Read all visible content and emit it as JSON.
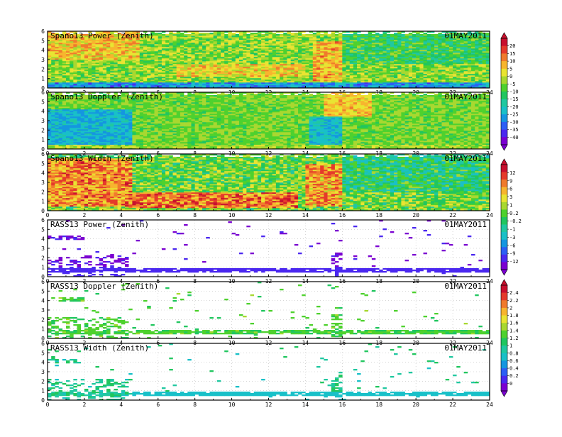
{
  "chart_data": [
    {
      "type": "heatmap",
      "title": "Spano13 Power (Zenith)",
      "date": "01MAY2011",
      "x_ticks": [
        0,
        2,
        4,
        6,
        8,
        10,
        12,
        14,
        16,
        18,
        20,
        22,
        24
      ],
      "y_ticks": [
        0,
        1,
        2,
        3,
        4,
        5,
        6
      ],
      "xlim": [
        0,
        24
      ],
      "ylim": [
        0,
        6
      ],
      "colorbar_group": "A",
      "profile": {
        "base": 0.58,
        "noise": 0.12,
        "features": [
          {
            "x": [
              0,
              5
            ],
            "y": [
              3,
              6
            ],
            "v": 0.72
          },
          {
            "x": [
              7,
              14
            ],
            "y": [
              1.2,
              2.5
            ],
            "v": 0.7
          },
          {
            "x": [
              14.5,
              16
            ],
            "y": [
              0.8,
              5
            ],
            "v": 0.75
          },
          {
            "x": [
              0,
              24
            ],
            "y": [
              0,
              0.6
            ],
            "v": 0.25
          },
          {
            "x": [
              16,
              24
            ],
            "y": [
              2.5,
              6
            ],
            "v": 0.48
          }
        ]
      }
    },
    {
      "type": "heatmap",
      "title": "Spano13 Doppler (Zenith)",
      "date": "01MAY2011",
      "x_ticks": [
        0,
        2,
        4,
        6,
        8,
        10,
        12,
        14,
        16,
        18,
        20,
        22,
        24
      ],
      "y_ticks": [
        0,
        1,
        2,
        3,
        4,
        5,
        6
      ],
      "xlim": [
        0,
        24
      ],
      "ylim": [
        0,
        6
      ],
      "colorbar_group": "A",
      "profile": {
        "base": 0.56,
        "noise": 0.08,
        "features": [
          {
            "x": [
              0,
              4.6
            ],
            "y": [
              0.5,
              4.2
            ],
            "v": 0.3
          },
          {
            "x": [
              14.3,
              15.9
            ],
            "y": [
              0.5,
              3.4
            ],
            "v": 0.32
          },
          {
            "x": [
              15,
              17.5
            ],
            "y": [
              3.5,
              6
            ],
            "v": 0.72
          },
          {
            "x": [
              0,
              24
            ],
            "y": [
              0,
              0.5
            ],
            "v": 0.6
          }
        ]
      }
    },
    {
      "type": "heatmap",
      "title": "Spano13 Width (Zenith)",
      "date": "01MAY2011",
      "x_ticks": [
        0,
        2,
        4,
        6,
        8,
        10,
        12,
        14,
        16,
        18,
        20,
        22,
        24
      ],
      "y_ticks": [
        0,
        1,
        2,
        3,
        4,
        5,
        6
      ],
      "xlim": [
        0,
        24
      ],
      "ylim": [
        0,
        6
      ],
      "colorbar_group": "B",
      "profile": {
        "base": 0.55,
        "noise": 0.15,
        "features": [
          {
            "x": [
              0,
              4.5
            ],
            "y": [
              0.5,
              5.5
            ],
            "v": 0.8
          },
          {
            "x": [
              4.5,
              13.5
            ],
            "y": [
              0.3,
              2
            ],
            "v": 0.82
          },
          {
            "x": [
              14,
              16
            ],
            "y": [
              0.5,
              5
            ],
            "v": 0.78
          },
          {
            "x": [
              16,
              24
            ],
            "y": [
              2,
              6
            ],
            "v": 0.45
          }
        ]
      }
    },
    {
      "type": "heatmap",
      "title": "RASS13 Power (Zenith)",
      "date": "01MAY2011",
      "x_ticks": [
        0,
        2,
        4,
        6,
        8,
        10,
        12,
        14,
        16,
        18,
        20,
        22,
        24
      ],
      "y_ticks": [
        0,
        1,
        2,
        3,
        4,
        5,
        6
      ],
      "xlim": [
        0,
        24
      ],
      "ylim": [
        0,
        6
      ],
      "colorbar_group": "B",
      "sparse": true,
      "profile": {
        "base": 0.05,
        "noise": 0.06
      }
    },
    {
      "type": "heatmap",
      "title": "RASS13 Doppler (Zenith)",
      "date": "01MAY2011",
      "x_ticks": [
        0,
        2,
        4,
        6,
        8,
        10,
        12,
        14,
        16,
        18,
        20,
        22,
        24
      ],
      "y_ticks": [
        0,
        1,
        2,
        3,
        4,
        5,
        6
      ],
      "xlim": [
        0,
        24
      ],
      "ylim": [
        0,
        6
      ],
      "colorbar_group": "C",
      "sparse": true,
      "profile": {
        "base": 0.52,
        "noise": 0.06
      }
    },
    {
      "type": "heatmap",
      "title": "RASS13 Width (Zenith)",
      "date": "01MAY2011",
      "x_ticks": [
        0,
        2,
        4,
        6,
        8,
        10,
        12,
        14,
        16,
        18,
        20,
        22,
        24
      ],
      "y_ticks": [
        0,
        1,
        2,
        3,
        4,
        5,
        6
      ],
      "xlim": [
        0,
        24
      ],
      "ylim": [
        0,
        6
      ],
      "colorbar_group": "C",
      "sparse": true,
      "profile": {
        "base": 0.42,
        "noise": 0.08
      }
    }
  ],
  "colorbars": {
    "A": {
      "labels": [
        "20",
        "15",
        "10",
        "5",
        "0",
        "-5",
        "-10",
        "-15",
        "-20",
        "-25",
        "-30",
        "-35",
        "-40"
      ]
    },
    "B": {
      "labels": [
        "12",
        "9",
        "6",
        "3",
        "1",
        "0.2",
        "-0.2",
        "-1",
        "-3",
        "-6",
        "-9",
        "-12"
      ]
    },
    "C": {
      "labels": [
        "2.4",
        "2.2",
        "2",
        "1.8",
        "1.6",
        "1.4",
        "1.2",
        "1",
        "0.8",
        "0.6",
        "0.4",
        "0.2",
        "0"
      ]
    }
  },
  "colors": {
    "palette": [
      "#7b00d1",
      "#4b28f0",
      "#2c5ef5",
      "#1596e0",
      "#19c0c8",
      "#20c8a0",
      "#21c65f",
      "#4ed12e",
      "#a8d830",
      "#e9e432",
      "#f7b52e",
      "#f07a2c",
      "#e53a2b",
      "#c8102e"
    ],
    "axis": "#000000",
    "grid": "#bdbdbd"
  }
}
